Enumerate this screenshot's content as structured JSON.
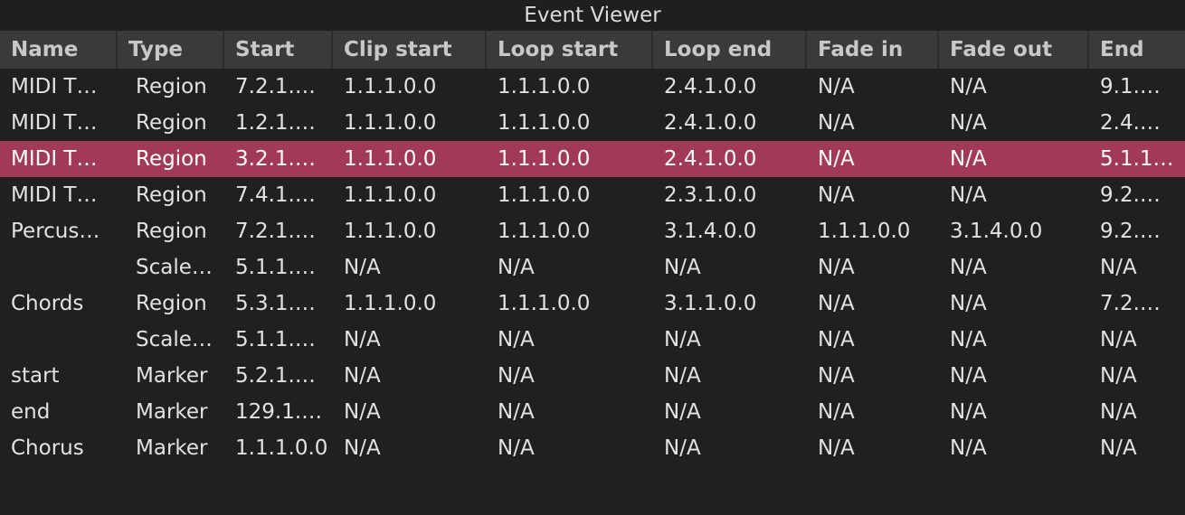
{
  "window": {
    "title": "Event Viewer"
  },
  "columns": [
    "Name",
    "Type",
    "Start",
    "Clip start",
    "Loop start",
    "Loop end",
    "Fade in",
    "Fade out",
    "End"
  ],
  "rows": [
    {
      "name": "MIDI T…",
      "type": "Region",
      "start": "7.2.1.…",
      "clip_start": "1.1.1.0.0",
      "loop_start": "1.1.1.0.0",
      "loop_end": "2.4.1.0.0",
      "fade_in": "N/A",
      "fade_out": "N/A",
      "end": "9.1.…"
    },
    {
      "name": "MIDI T…",
      "type": "Region",
      "start": "1.2.1.…",
      "clip_start": "1.1.1.0.0",
      "loop_start": "1.1.1.0.0",
      "loop_end": "2.4.1.0.0",
      "fade_in": "N/A",
      "fade_out": "N/A",
      "end": "2.4.…"
    },
    {
      "name": "MIDI T…",
      "type": "Region",
      "start": "3.2.1.…",
      "clip_start": "1.1.1.0.0",
      "loop_start": "1.1.1.0.0",
      "loop_end": "2.4.1.0.0",
      "fade_in": "N/A",
      "fade_out": "N/A",
      "end": "5.1.1…"
    },
    {
      "name": "MIDI T…",
      "type": "Region",
      "start": "7.4.1.…",
      "clip_start": "1.1.1.0.0",
      "loop_start": "1.1.1.0.0",
      "loop_end": "2.3.1.0.0",
      "fade_in": "N/A",
      "fade_out": "N/A",
      "end": "9.2.…"
    },
    {
      "name": "Percus…",
      "type": "Region",
      "start": "7.2.1.…",
      "clip_start": "1.1.1.0.0",
      "loop_start": "1.1.1.0.0",
      "loop_end": "3.1.4.0.0",
      "fade_in": "1.1.1.0.0",
      "fade_out": "3.1.4.0.0",
      "end": "9.2.…"
    },
    {
      "name": "",
      "type": "Scale…",
      "start": "5.1.1.…",
      "clip_start": "N/A",
      "loop_start": "N/A",
      "loop_end": "N/A",
      "fade_in": "N/A",
      "fade_out": "N/A",
      "end": "N/A"
    },
    {
      "name": "Chords",
      "type": "Region",
      "start": "5.3.1.…",
      "clip_start": "1.1.1.0.0",
      "loop_start": "1.1.1.0.0",
      "loop_end": "3.1.1.0.0",
      "fade_in": "N/A",
      "fade_out": "N/A",
      "end": "7.2.…"
    },
    {
      "name": "",
      "type": "Scale…",
      "start": "5.1.1.…",
      "clip_start": "N/A",
      "loop_start": "N/A",
      "loop_end": "N/A",
      "fade_in": "N/A",
      "fade_out": "N/A",
      "end": "N/A"
    },
    {
      "name": "start",
      "type": "Marker",
      "start": "5.2.1.…",
      "clip_start": "N/A",
      "loop_start": "N/A",
      "loop_end": "N/A",
      "fade_in": "N/A",
      "fade_out": "N/A",
      "end": "N/A"
    },
    {
      "name": "end",
      "type": "Marker",
      "start": "129.1.…",
      "clip_start": "N/A",
      "loop_start": "N/A",
      "loop_end": "N/A",
      "fade_in": "N/A",
      "fade_out": "N/A",
      "end": "N/A"
    },
    {
      "name": "Chorus",
      "type": "Marker",
      "start": "1.1.1.0.0",
      "clip_start": "N/A",
      "loop_start": "N/A",
      "loop_end": "N/A",
      "fade_in": "N/A",
      "fade_out": "N/A",
      "end": "N/A"
    }
  ],
  "selection": {
    "selected_row_index": 2
  },
  "colors": {
    "background": "#202020",
    "header_background": "#3a3a3a",
    "selected_row": "#a13a56"
  }
}
